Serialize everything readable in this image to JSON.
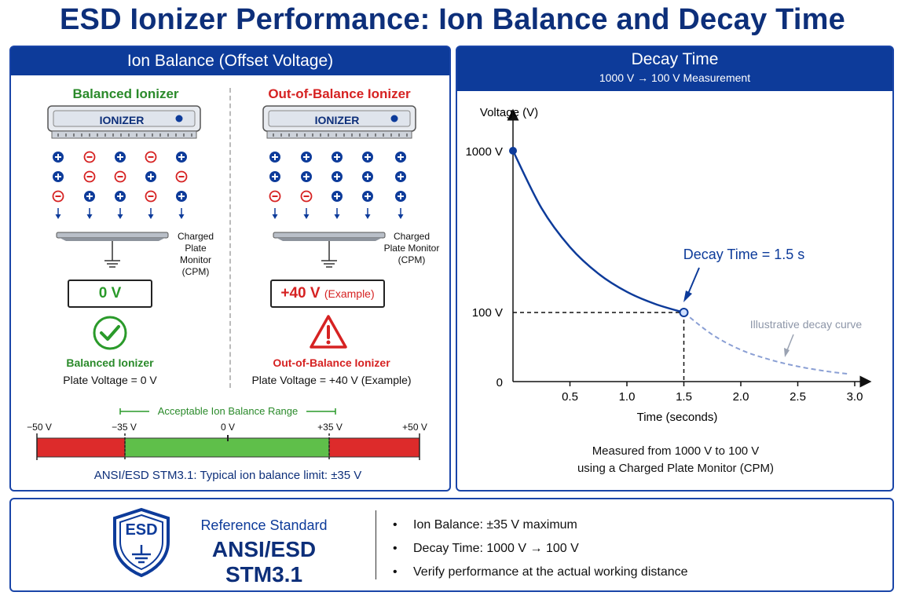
{
  "title": "ESD Ionizer Performance: Ion Balance and Decay Time",
  "left_panel": {
    "header": "Ion Balance (Offset Voltage)",
    "balanced": {
      "title": "Balanced Ionizer",
      "device_label": "IONIZER",
      "cpm_line1": "Charged",
      "cpm_line2": "Plate Monitor",
      "cpm_line3": "(CPM)",
      "reading": "0 V",
      "status": "Balanced Ionizer",
      "plate_voltage": "Plate Voltage = 0 V"
    },
    "unbalanced": {
      "title": "Out-of-Balance Ionizer",
      "device_label": "IONIZER",
      "cpm_line1": "Charged",
      "cpm_line2": "Plate Monitor",
      "cpm_line3": "(CPM)",
      "reading_value": "+40 V",
      "reading_note": "(Example)",
      "status": "Out-of-Balance Ionizer",
      "plate_voltage": "Plate Voltage = +40 V (Example)"
    },
    "range_bar": {
      "acceptable_label": "Acceptable Ion Balance Range",
      "ticks": [
        "−50 V",
        "−35 V",
        "0 V",
        "+35 V",
        "+50 V"
      ],
      "note": "ANSI/ESD STM3.1: Typical ion balance limit: ±35 V"
    }
  },
  "right_panel": {
    "header": "Decay Time",
    "subheader": "1000 V → 100 V Measurement",
    "footnote_line1": "Measured from 1000 V to 100 V",
    "footnote_line2": "using a Charged Plate Monitor (CPM)"
  },
  "chart_data": {
    "type": "line",
    "ylabel": "Voltage (V)",
    "xlabel": "Time (seconds)",
    "y_tick_labels": [
      "1000 V",
      "100 V",
      "0"
    ],
    "x_ticks": [
      0.5,
      1.0,
      1.5,
      2.0,
      2.5,
      3.0
    ],
    "x_tick_labels": [
      "0.5",
      "1.0",
      "1.5",
      "2.0",
      "2.5",
      "3.0"
    ],
    "annotation": "Decay Time = 1.5 s",
    "illustrative_label": "Illustrative decay curve",
    "series": [
      {
        "style": "solid",
        "x": [
          0,
          0.25,
          0.5,
          0.75,
          1.0,
          1.25,
          1.5
        ],
        "y": [
          1000,
          681,
          464,
          316,
          215,
          147,
          100
        ]
      },
      {
        "style": "dashed",
        "x": [
          1.5,
          1.75,
          2.0,
          2.25,
          2.5,
          2.75,
          2.95
        ],
        "y": [
          100,
          68,
          46,
          32,
          22,
          15,
          11
        ]
      }
    ],
    "xlim": [
      0,
      3.1
    ],
    "ylim": [
      0,
      1000
    ],
    "colors": {
      "solid": "#0d3b9a",
      "dashed": "#8a9fd4"
    }
  },
  "bottom_panel": {
    "badge_text": "ESD",
    "ref_label": "Reference Standard",
    "ref_name": "ANSI/ESD STM3.1",
    "bullets": [
      "Ion Balance: ±35 V maximum",
      "Decay Time: 1000 V → 100 V",
      "Verify performance at the actual working distance"
    ]
  },
  "colors": {
    "navy": "#0d3b9a",
    "green": "#2a9a2a",
    "red": "#d62222",
    "range_green": "#5fbf4a",
    "range_red": "#dd2b2b"
  }
}
